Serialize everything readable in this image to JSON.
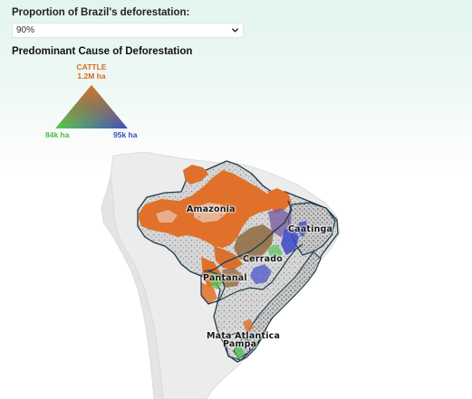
{
  "controls": {
    "proportion_label": "Proportion of Brazil's deforestation:",
    "proportion_value": "90%"
  },
  "legend": {
    "title": "Predominant Cause of Deforestation",
    "top_label": "CATTLE",
    "top_value": "1.2M ha",
    "left_value": "84k ha",
    "right_value": "95k ha",
    "colors": {
      "top": "#e0702a",
      "left": "#52d04a",
      "right": "#3c48c8"
    }
  },
  "map": {
    "biomes": [
      {
        "name": "Amazonia"
      },
      {
        "name": "Caatinga"
      },
      {
        "name": "Cerrado"
      },
      {
        "name": "Pantanal"
      },
      {
        "name": "Mata Atlantica"
      },
      {
        "name": "Pampa"
      }
    ],
    "colors": {
      "background_land": "#ececec",
      "brazil_base": "#dcdcdc",
      "cattle": "#e0702a",
      "biome_border": "#1e3b4a"
    }
  }
}
